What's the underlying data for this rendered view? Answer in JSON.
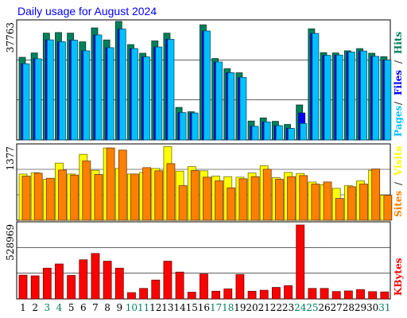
{
  "title": "Daily usage for August 2024",
  "colors": {
    "title": "#0000FF",
    "hits": "#00805C",
    "files": "#0000FF",
    "pages": "#00C0FF",
    "visits": "#FFFF00",
    "sites": "#FF8000",
    "kbytes": "#FF0000",
    "weekend_label": "#00805C",
    "weekday_label": "#000000",
    "separator": "#000000"
  },
  "chart_data": [
    {
      "type": "bar",
      "panel": "top",
      "ylabel_value": "37763",
      "legend": [
        {
          "label": "Hits",
          "color": "#00805C"
        },
        {
          "label": "Files",
          "color": "#0000FF"
        },
        {
          "label": "Pages",
          "color": "#00C0FF"
        }
      ],
      "legend_separator": "/",
      "ymax": 37763,
      "categories": [
        "1",
        "2",
        "3",
        "4",
        "5",
        "6",
        "7",
        "8",
        "9",
        "10",
        "11",
        "12",
        "13",
        "14",
        "15",
        "16",
        "17",
        "18",
        "19",
        "20",
        "21",
        "22",
        "23",
        "24",
        "25",
        "26",
        "27",
        "28",
        "29",
        "30",
        "31"
      ],
      "series": [
        {
          "name": "Hits",
          "values": [
            26700,
            28100,
            34500,
            34700,
            34500,
            31700,
            36200,
            32300,
            38300,
            30800,
            28000,
            32000,
            34500,
            10500,
            9100,
            37200,
            26300,
            23000,
            21700,
            6100,
            7100,
            6000,
            5000,
            11300,
            35900,
            28200,
            28100,
            28800,
            29500,
            28000,
            26900
          ]
        },
        {
          "name": "Files",
          "values": [
            24600,
            26200,
            32300,
            31700,
            32200,
            28800,
            33900,
            29800,
            35800,
            29500,
            26800,
            30000,
            32500,
            8800,
            8700,
            35200,
            25200,
            21700,
            20200,
            4400,
            5800,
            4600,
            3700,
            8700,
            34400,
            27300,
            27400,
            28400,
            28700,
            27000,
            25800
          ]
        },
        {
          "name": "Pages",
          "values": [
            24600,
            26200,
            32300,
            31700,
            32200,
            28800,
            33900,
            29800,
            35800,
            29500,
            26800,
            30000,
            32500,
            8800,
            8700,
            35200,
            25200,
            21700,
            20200,
            4400,
            5800,
            4600,
            3700,
            5300,
            34400,
            27300,
            27400,
            28400,
            28700,
            27000,
            25800
          ]
        }
      ]
    },
    {
      "type": "bar",
      "panel": "middle",
      "ylabel_value": "1377",
      "legend": [
        {
          "label": "Visits",
          "color": "#FFFF00"
        },
        {
          "label": "Sites",
          "color": "#FF8000"
        }
      ],
      "legend_separator": "/",
      "ymax": 1377,
      "categories": [
        "1",
        "2",
        "3",
        "4",
        "5",
        "6",
        "7",
        "8",
        "9",
        "10",
        "11",
        "12",
        "13",
        "14",
        "15",
        "16",
        "17",
        "18",
        "19",
        "20",
        "21",
        "22",
        "23",
        "24",
        "25",
        "26",
        "27",
        "28",
        "29",
        "30",
        "31"
      ],
      "series": [
        {
          "name": "Visits",
          "values": [
            870,
            895,
            770,
            1075,
            870,
            1240,
            940,
            1360,
            975,
            870,
            900,
            975,
            1385,
            925,
            1010,
            930,
            830,
            820,
            810,
            890,
            1025,
            800,
            900,
            880,
            720,
            670,
            600,
            650,
            740,
            940,
            470
          ]
        },
        {
          "name": "Sites",
          "values": [
            830,
            885,
            790,
            945,
            850,
            1115,
            860,
            1360,
            1320,
            870,
            990,
            930,
            1065,
            650,
            935,
            810,
            740,
            610,
            780,
            820,
            960,
            770,
            820,
            840,
            680,
            720,
            410,
            630,
            680,
            965,
            470
          ]
        }
      ]
    },
    {
      "type": "bar",
      "panel": "bottom",
      "ylabel_value": "528969",
      "legend": [
        {
          "label": "KBytes",
          "color": "#FF0000"
        }
      ],
      "ymax": 528969,
      "categories": [
        "1",
        "2",
        "3",
        "4",
        "5",
        "6",
        "7",
        "8",
        "9",
        "10",
        "11",
        "12",
        "13",
        "14",
        "15",
        "16",
        "17",
        "18",
        "19",
        "20",
        "21",
        "22",
        "23",
        "24",
        "25",
        "26",
        "27",
        "28",
        "29",
        "30",
        "31"
      ],
      "series": [
        {
          "name": "KBytes",
          "values": [
            170000,
            165000,
            220000,
            250000,
            168000,
            280000,
            325000,
            270000,
            220000,
            45000,
            75000,
            135000,
            270000,
            192000,
            48000,
            178000,
            55000,
            72000,
            175000,
            55000,
            62000,
            82000,
            95000,
            528969,
            75000,
            75000,
            53000,
            57000,
            67000,
            52000,
            50000
          ]
        }
      ]
    }
  ],
  "x_labels": {
    "days": [
      "1",
      "2",
      "3",
      "4",
      "5",
      "6",
      "7",
      "8",
      "9",
      "10",
      "11",
      "12",
      "13",
      "14",
      "15",
      "16",
      "17",
      "18",
      "19",
      "20",
      "21",
      "22",
      "23",
      "24",
      "25",
      "26",
      "27",
      "28",
      "29",
      "30",
      "31"
    ],
    "weekend": [
      3,
      4,
      10,
      11,
      17,
      18,
      24,
      25,
      31
    ]
  }
}
